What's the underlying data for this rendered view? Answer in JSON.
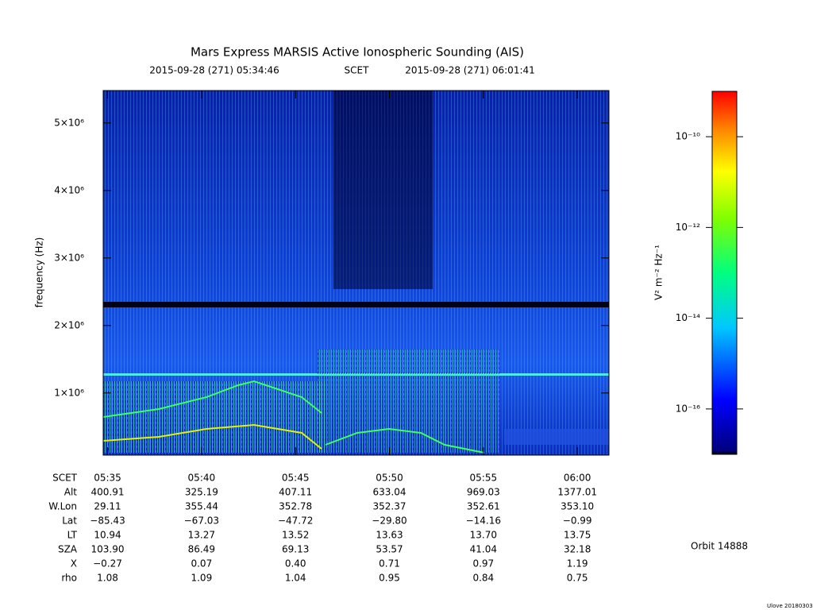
{
  "chart_data": {
    "type": "spectrogram",
    "title": "Mars Express MARSIS Active Ionospheric Sounding (AIS)",
    "start": "2015-09-28 (271) 05:34:46",
    "time_label": "SCET",
    "end": "2015-09-28 (271) 06:01:41",
    "y_label": "frequency (Hz)",
    "xlim": [
      "05:34:46",
      "06:01:41"
    ],
    "xticks": [
      "05:35",
      "05:40",
      "05:45",
      "05:50",
      "05:55",
      "06:00"
    ],
    "ylim": [
      80000,
      5480000
    ],
    "yticks": [
      {
        "value": 1000000,
        "label": "1×10⁶"
      },
      {
        "value": 2000000,
        "label": "2×10⁶"
      },
      {
        "value": 3000000,
        "label": "3×10⁶"
      },
      {
        "value": 4000000,
        "label": "4×10⁶"
      },
      {
        "value": 5000000,
        "label": "5×10⁶"
      }
    ],
    "colorbar": {
      "label": "V² m⁻² Hz⁻¹",
      "log": true,
      "clim": [
        1e-17,
        1e-09
      ],
      "ticks": [
        {
          "value": 1e-10,
          "label": "10⁻¹⁰"
        },
        {
          "value": 1e-12,
          "label": "10⁻¹²"
        },
        {
          "value": 1e-14,
          "label": "10⁻¹⁴"
        },
        {
          "value": 1e-16,
          "label": "10⁻¹⁶"
        }
      ]
    },
    "ephemeris": {
      "time_row_label": "SCET",
      "rows": [
        {
          "label": "Alt",
          "values": [
            "400.91",
            "325.19",
            "407.11",
            "633.04",
            "969.03",
            "1377.01"
          ]
        },
        {
          "label": "W.Lon",
          "values": [
            "29.11",
            "355.44",
            "352.78",
            "352.37",
            "352.61",
            "353.10"
          ]
        },
        {
          "label": "Lat",
          "values": [
            "−85.43",
            "−67.03",
            "−47.72",
            "−29.80",
            "−14.16",
            "−0.99"
          ]
        },
        {
          "label": "LT",
          "values": [
            "10.94",
            "13.27",
            "13.52",
            "13.63",
            "13.70",
            "13.75"
          ]
        },
        {
          "label": "SZA",
          "values": [
            "103.90",
            "86.49",
            "69.13",
            "53.57",
            "41.04",
            "32.18"
          ]
        },
        {
          "label": "X",
          "values": [
            "−0.27",
            "0.07",
            "0.40",
            "0.71",
            "0.97",
            "1.19"
          ]
        },
        {
          "label": "rho",
          "values": [
            "1.08",
            "1.09",
            "1.04",
            "0.95",
            "0.84",
            "0.75"
          ]
        }
      ]
    },
    "orbit": "Orbit 14888",
    "credit": "Ulove 20180303"
  }
}
